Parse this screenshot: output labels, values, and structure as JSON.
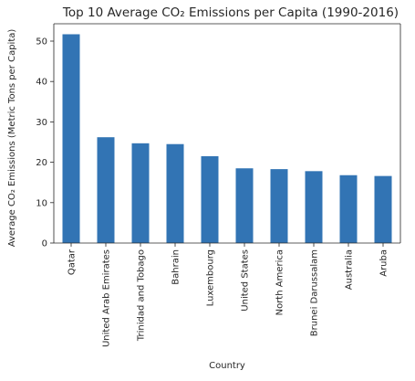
{
  "chart_data": {
    "type": "bar",
    "title": "Top 10 Average CO₂ Emissions per Capita (1990-2016)",
    "xlabel": "Country",
    "ylabel": "Average CO₂ Emissions (Metric Tons per Capita)",
    "categories": [
      "Qatar",
      "United Arab Emirates",
      "Trinidad and Tobago",
      "Bahrain",
      "Luxembourg",
      "United States",
      "North America",
      "Brunei Darussalam",
      "Australia",
      "Aruba"
    ],
    "values": [
      51.7,
      26.2,
      24.7,
      24.5,
      21.5,
      18.5,
      18.3,
      17.8,
      16.8,
      16.6
    ],
    "yticks": [
      0,
      10,
      20,
      30,
      40,
      50
    ],
    "ylim": [
      0,
      54.3
    ],
    "grid": false,
    "legend": "none",
    "bar_color": "#3274b4"
  }
}
